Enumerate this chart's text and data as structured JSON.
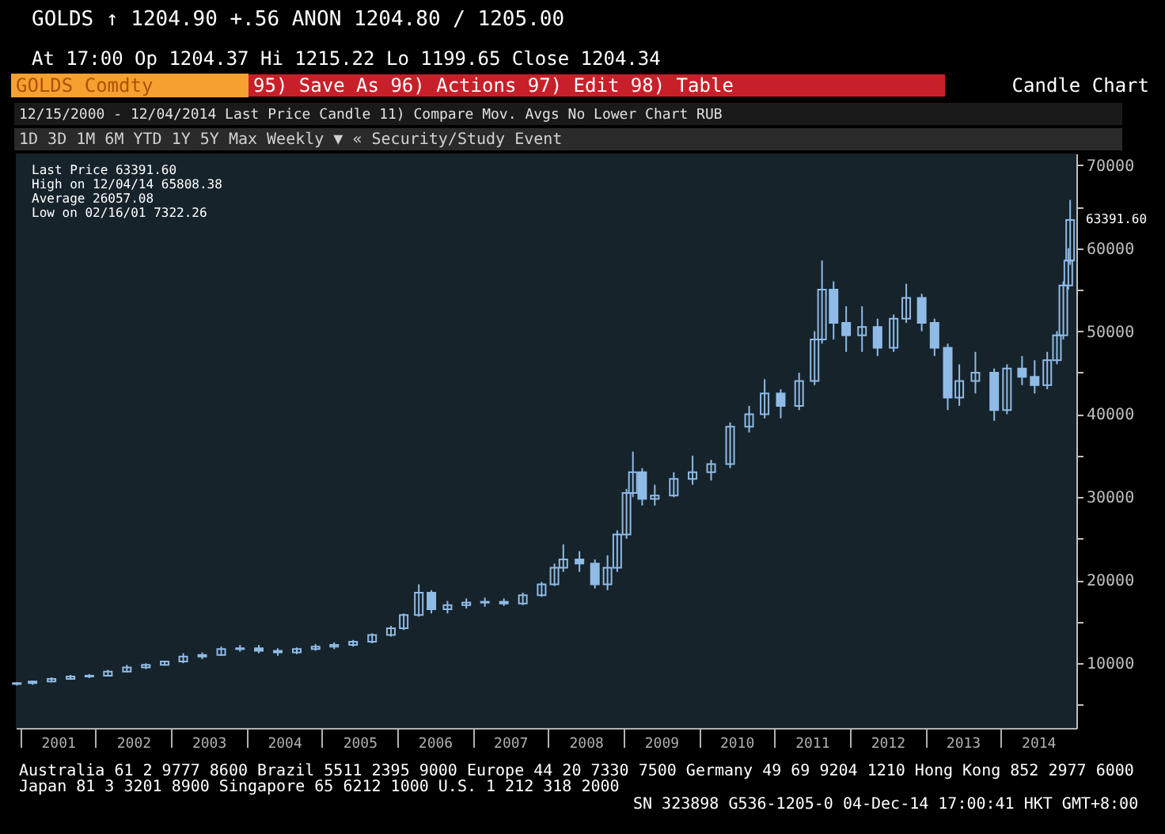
{
  "chart_data": {
    "type": "candlestick",
    "title": "GOLDS Comdty",
    "subtitle": "Candle Chart",
    "x": [
      "2000-12-15",
      "2001-03-01",
      "2001-06-01",
      "2001-09-01",
      "2001-12-01",
      "2002-03-01",
      "2002-06-01",
      "2002-09-01",
      "2002-12-01",
      "2003-03-01",
      "2003-06-01",
      "2003-09-01",
      "2003-12-01",
      "2004-03-01",
      "2004-06-01",
      "2004-09-01",
      "2004-12-01",
      "2005-03-01",
      "2005-06-01",
      "2005-09-01",
      "2005-12-01",
      "2006-02-01",
      "2006-04-15",
      "2006-06-15",
      "2006-09-01",
      "2006-12-01",
      "2007-03-01",
      "2007-06-01",
      "2007-09-01",
      "2007-12-01",
      "2008-02-01",
      "2008-03-15",
      "2008-06-01",
      "2008-08-15",
      "2008-10-15",
      "2008-12-01",
      "2009-01-15",
      "2009-02-15",
      "2009-04-01",
      "2009-06-01",
      "2009-09-01",
      "2009-12-01",
      "2010-03-01",
      "2010-06-01",
      "2010-09-01",
      "2010-11-15",
      "2011-02-01",
      "2011-05-01",
      "2011-07-15",
      "2011-08-20",
      "2011-10-15",
      "2011-12-15",
      "2012-03-01",
      "2012-05-15",
      "2012-08-01",
      "2012-10-01",
      "2012-12-15",
      "2013-02-15",
      "2013-04-20",
      "2013-06-15",
      "2013-09-01",
      "2013-12-01",
      "2014-02-01",
      "2014-04-15",
      "2014-06-15",
      "2014-08-15",
      "2014-10-01",
      "2014-11-01",
      "2014-11-25",
      "2014-12-04"
    ],
    "ohlc": [
      [
        7500,
        7700,
        7322.26,
        7600
      ],
      [
        7600,
        7900,
        7400,
        7800
      ],
      [
        7800,
        8300,
        7700,
        8100
      ],
      [
        8100,
        8600,
        8000,
        8400
      ],
      [
        8400,
        8700,
        8200,
        8500
      ],
      [
        8500,
        9200,
        8400,
        9000
      ],
      [
        9000,
        9800,
        8900,
        9500
      ],
      [
        9500,
        10000,
        9300,
        9800
      ],
      [
        9800,
        10300,
        9700,
        10200
      ],
      [
        10200,
        11200,
        10000,
        10800
      ],
      [
        10800,
        11300,
        10500,
        11000
      ],
      [
        11000,
        12000,
        10900,
        11700
      ],
      [
        11700,
        12200,
        11400,
        11800
      ],
      [
        11800,
        12200,
        11200,
        11500
      ],
      [
        11500,
        11800,
        10900,
        11300
      ],
      [
        11300,
        11900,
        11100,
        11700
      ],
      [
        11700,
        12300,
        11500,
        12000
      ],
      [
        12000,
        12500,
        11700,
        12200
      ],
      [
        12200,
        12800,
        12000,
        12600
      ],
      [
        12600,
        13600,
        12400,
        13400
      ],
      [
        13400,
        14500,
        13200,
        14200
      ],
      [
        14200,
        16000,
        14000,
        15800
      ],
      [
        15800,
        19500,
        15600,
        18500
      ],
      [
        18500,
        18800,
        16000,
        16500
      ],
      [
        16500,
        17500,
        16000,
        17000
      ],
      [
        17000,
        17800,
        16600,
        17300
      ],
      [
        17300,
        17900,
        16800,
        17400
      ],
      [
        17400,
        17800,
        16900,
        17200
      ],
      [
        17200,
        18500,
        17000,
        18200
      ],
      [
        18200,
        19800,
        18000,
        19500
      ],
      [
        19500,
        22000,
        19300,
        21500
      ],
      [
        21500,
        24300,
        21000,
        22500
      ],
      [
        22500,
        23500,
        21000,
        22000
      ],
      [
        22000,
        22500,
        19000,
        19500
      ],
      [
        19500,
        23000,
        18800,
        21500
      ],
      [
        21500,
        26000,
        21000,
        25500
      ],
      [
        25500,
        31000,
        25000,
        30500
      ],
      [
        30500,
        35500,
        30000,
        33000
      ],
      [
        33000,
        33500,
        29000,
        29800
      ],
      [
        29800,
        31500,
        29000,
        30200
      ],
      [
        30200,
        33000,
        30000,
        32200
      ],
      [
        32200,
        35000,
        31500,
        33000
      ],
      [
        33000,
        34500,
        32000,
        34000
      ],
      [
        34000,
        39000,
        33500,
        38500
      ],
      [
        38500,
        41000,
        37800,
        40000
      ],
      [
        40000,
        44200,
        39500,
        42500
      ],
      [
        42500,
        43000,
        39500,
        41000
      ],
      [
        41000,
        45000,
        40500,
        44000
      ],
      [
        44000,
        50000,
        43500,
        49000
      ],
      [
        49000,
        58500,
        48500,
        55000
      ],
      [
        55000,
        56000,
        49000,
        51000
      ],
      [
        51000,
        53000,
        47500,
        49500
      ],
      [
        49500,
        53000,
        47500,
        50500
      ],
      [
        50500,
        51500,
        47000,
        48000
      ],
      [
        48000,
        52000,
        47500,
        51500
      ],
      [
        51500,
        55700,
        51000,
        54000
      ],
      [
        54000,
        54500,
        50000,
        51000
      ],
      [
        51000,
        51500,
        47000,
        48000
      ],
      [
        48000,
        48500,
        40500,
        42000
      ],
      [
        42000,
        46000,
        41000,
        44000
      ],
      [
        44000,
        47500,
        42500,
        45000
      ],
      [
        45000,
        45500,
        39200,
        40500
      ],
      [
        40500,
        46000,
        40000,
        45500
      ],
      [
        45500,
        47000,
        43500,
        44500
      ],
      [
        44500,
        46500,
        42500,
        43500
      ],
      [
        43500,
        47500,
        43000,
        46500
      ],
      [
        46500,
        50000,
        46000,
        49500
      ],
      [
        49500,
        56000,
        49000,
        55500
      ],
      [
        55500,
        60000,
        55000,
        58500
      ],
      [
        58500,
        65808.38,
        58000,
        63391.6
      ]
    ],
    "color": "#8fbbe6",
    "xlim": [
      "2000-12-10",
      "2015-01-03"
    ],
    "xticks": [
      {
        "value": "2001-01-01",
        "label": null
      },
      {
        "value": "2001-07-02",
        "label": "2001"
      },
      {
        "value": "2002-01-01",
        "label": null
      },
      {
        "value": "2002-07-02",
        "label": "2002"
      },
      {
        "value": "2003-01-01",
        "label": null
      },
      {
        "value": "2003-07-02",
        "label": "2003"
      },
      {
        "value": "2004-01-01",
        "label": null
      },
      {
        "value": "2004-07-02",
        "label": "2004"
      },
      {
        "value": "2005-01-01",
        "label": null
      },
      {
        "value": "2005-07-02",
        "label": "2005"
      },
      {
        "value": "2006-01-01",
        "label": null
      },
      {
        "value": "2006-07-02",
        "label": "2006"
      },
      {
        "value": "2007-01-01",
        "label": null
      },
      {
        "value": "2007-07-02",
        "label": "2007"
      },
      {
        "value": "2008-01-01",
        "label": null
      },
      {
        "value": "2008-07-02",
        "label": "2008"
      },
      {
        "value": "2009-01-01",
        "label": null
      },
      {
        "value": "2009-07-02",
        "label": "2009"
      },
      {
        "value": "2010-01-01",
        "label": null
      },
      {
        "value": "2010-07-02",
        "label": "2010"
      },
      {
        "value": "2011-01-01",
        "label": null
      },
      {
        "value": "2011-07-02",
        "label": "2011"
      },
      {
        "value": "2012-01-01",
        "label": null
      },
      {
        "value": "2012-07-02",
        "label": "2012"
      },
      {
        "value": "2013-01-01",
        "label": null
      },
      {
        "value": "2013-07-02",
        "label": "2013"
      },
      {
        "value": "2014-01-01",
        "label": null
      },
      {
        "value": "2014-07-02",
        "label": "2014"
      }
    ],
    "ylim": [
      2200,
      71400
    ],
    "yticks": [
      {
        "value": 5000,
        "label": null
      },
      10000,
      {
        "value": 15000,
        "label": null
      },
      20000,
      {
        "value": 25000,
        "label": null
      },
      30000,
      {
        "value": 35000,
        "label": null
      },
      40000,
      {
        "value": 45000,
        "label": null
      },
      50000,
      {
        "value": 55000,
        "label": null
      },
      60000,
      {
        "value": 65000,
        "label": null
      },
      70000
    ],
    "grid": false,
    "annotations": [
      "GOLDS ↑ 1204.90   +.56   ANON 1204.80 / 1205.00",
      "At 17:00   Op 1204.37   Hi 1215.22   Lo 1199.65   Close 1204.34",
      "95) Save As   96) Actions   97) Edit   98) Table",
      "12/15/2000 - 12/04/2014  Last Price  Candle     11) Compare  Mov. Avgs     No Lower Chart  RUB",
      "1D  3D  1M  6M  YTD  1Y  5Y  Max  Weekly ▼      « Security/Study   Event",
      "Last Price  63391.60",
      "High on 12/04/14  65808.38",
      "Average  26057.08",
      "Low on 02/16/01  7322.26",
      "Australia 61 2 9777 8600 Brazil 5511 2395 9000 Europe 44 20 7330 7500 Germany 49 69 9204 1210 Hong Kong 852 2977 6000",
      "Japan 81 3 3201 8900     Singapore 65 6212 1000     U.S. 1 212 318 2000",
      "SN 323898 G536-1205-0 04-Dec-14 17:00:41 HKT  GMT+8:00",
      {
        "text": "63391.60",
        "x": "2014-12-04",
        "y": 63391.6
      }
    ]
  }
}
